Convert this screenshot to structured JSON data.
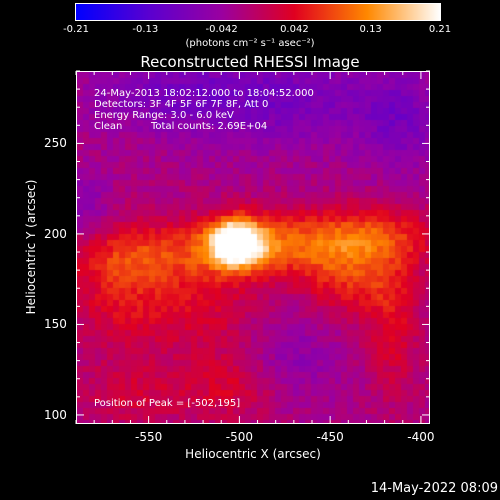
{
  "colorbar": {
    "ticks": [
      "-0.21",
      "-0.13",
      "-0.042",
      "0.042",
      "0.13",
      "0.21"
    ],
    "tick_values": [
      -0.21,
      -0.13,
      -0.042,
      0.042,
      0.13,
      0.21
    ],
    "units_text": "(photons cm⁻² s⁻¹ asec⁻²)",
    "colors": [
      "#0000ff",
      "#5a00d0",
      "#9a00a0",
      "#e00020",
      "#ff8800",
      "#ffffff"
    ]
  },
  "annotations": {
    "time_range": "24-May-2013 18:02:12.000 to 18:04:52.000",
    "detectors": "Detectors: 3F 4F 5F 6F 7F 8F, Att 0",
    "energy_range": "Energy Range: 3.0 - 6.0 keV",
    "algorithm": "Clean",
    "total_counts": "Total counts: 2.69E+04",
    "peak_position": "Position of Peak = [-502,195]"
  },
  "timestamp": "14-May-2022 08:09",
  "chart_data": {
    "type": "heatmap",
    "title": "Reconstructed RHESSI Image",
    "xlabel": "Heliocentric X (arcsec)",
    "ylabel": "Heliocentric Y (arcsec)",
    "xlim": [
      -590,
      -395
    ],
    "ylim": [
      95,
      290
    ],
    "xticks": [
      "-550",
      "-500",
      "-450",
      "-400"
    ],
    "xtick_values": [
      -550,
      -500,
      -450,
      -400
    ],
    "yticks": [
      "100",
      "150",
      "200",
      "250"
    ],
    "ytick_values": [
      100,
      150,
      200,
      250
    ],
    "value_range": [
      -0.21,
      0.21
    ],
    "peak": {
      "x": -502,
      "y": 195,
      "value": 0.21
    },
    "features": [
      {
        "x": -502,
        "y": 195,
        "sx": 10,
        "sy": 9,
        "value": 0.24
      },
      {
        "x": -490,
        "y": 192,
        "sx": 28,
        "sy": 12,
        "value": 0.06
      },
      {
        "x": -470,
        "y": 196,
        "sx": 40,
        "sy": 12,
        "value": 0.07
      },
      {
        "x": -425,
        "y": 198,
        "sx": 22,
        "sy": 12,
        "value": 0.08
      },
      {
        "x": -555,
        "y": 188,
        "sx": 28,
        "sy": 12,
        "value": 0.07
      },
      {
        "x": -565,
        "y": 165,
        "sx": 20,
        "sy": 22,
        "value": 0.06
      },
      {
        "x": -520,
        "y": 160,
        "sx": 22,
        "sy": 18,
        "value": 0.05
      },
      {
        "x": -445,
        "y": 175,
        "sx": 15,
        "sy": 14,
        "value": 0.06
      },
      {
        "x": -420,
        "y": 170,
        "sx": 14,
        "sy": 14,
        "value": 0.05
      },
      {
        "x": -415,
        "y": 140,
        "sx": 10,
        "sy": 22,
        "value": 0.05
      },
      {
        "x": -505,
        "y": 115,
        "sx": 22,
        "sy": 14,
        "value": 0.05
      },
      {
        "x": -560,
        "y": 110,
        "sx": 20,
        "sy": 12,
        "value": 0.04
      },
      {
        "x": -470,
        "y": 275,
        "sx": 45,
        "sy": 20,
        "value": -0.06
      },
      {
        "x": -540,
        "y": 278,
        "sx": 35,
        "sy": 15,
        "value": -0.05
      },
      {
        "x": -410,
        "y": 260,
        "sx": 15,
        "sy": 20,
        "value": -0.05
      },
      {
        "x": -470,
        "y": 130,
        "sx": 18,
        "sy": 18,
        "value": -0.04
      },
      {
        "x": -585,
        "y": 215,
        "sx": 10,
        "sy": 15,
        "value": -0.04
      }
    ]
  }
}
